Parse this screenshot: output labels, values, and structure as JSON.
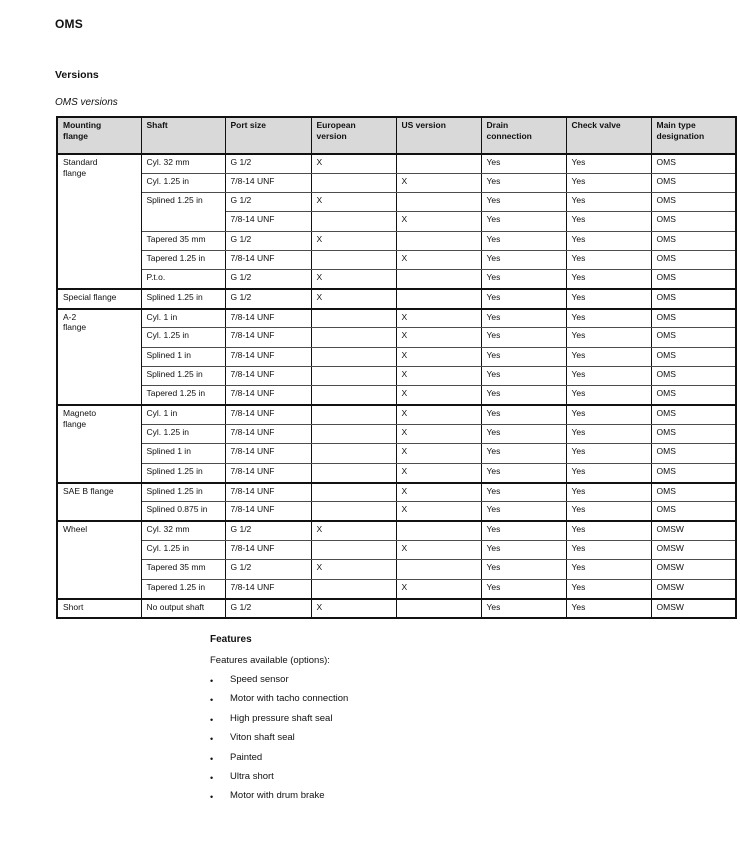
{
  "colors": {
    "header_bg": "#d9d9d9",
    "text": "#111111",
    "border_dark": "#111111",
    "border_light": "#4d4d4d"
  },
  "page": {
    "title": "OMS",
    "section_heading": "Versions",
    "table_caption": "OMS versions"
  },
  "table": {
    "headers": [
      "Mounting\nflange",
      "Shaft",
      "Port size",
      "European\nversion",
      "US version",
      "Drain\nconnection",
      "Check valve",
      "Main type\ndesignation"
    ],
    "groups": [
      {
        "flange": "Standard\nflange",
        "rows": [
          {
            "shaft": "Cyl. 32 mm",
            "port": "G 1/2",
            "eu": "X",
            "us": "",
            "drain": "Yes",
            "check": "Yes",
            "type": "OMS"
          },
          {
            "shaft": "Cyl. 1.25 in",
            "port": "7/8-14 UNF",
            "eu": "",
            "us": "X",
            "drain": "Yes",
            "check": "Yes",
            "type": "OMS"
          },
          {
            "shaft": "Splined 1.25 in",
            "shaft_rowspan": 2,
            "port": "G 1/2",
            "eu": "X",
            "us": "",
            "drain": "Yes",
            "check": "Yes",
            "type": "OMS"
          },
          {
            "shaft": null,
            "port": "7/8-14 UNF",
            "eu": "",
            "us": "X",
            "drain": "Yes",
            "check": "Yes",
            "type": "OMS"
          },
          {
            "shaft": "Tapered 35 mm",
            "port": "G 1/2",
            "eu": "X",
            "us": "",
            "drain": "Yes",
            "check": "Yes",
            "type": "OMS"
          },
          {
            "shaft": "Tapered 1.25 in",
            "port": "7/8-14 UNF",
            "eu": "",
            "us": "X",
            "drain": "Yes",
            "check": "Yes",
            "type": "OMS"
          },
          {
            "shaft": "P.t.o.",
            "port": "G 1/2",
            "eu": "X",
            "us": "",
            "drain": "Yes",
            "check": "Yes",
            "type": "OMS"
          }
        ]
      },
      {
        "flange": "Special flange",
        "rows": [
          {
            "shaft": "Splined 1.25 in",
            "port": "G 1/2",
            "eu": "X",
            "us": "",
            "drain": "Yes",
            "check": "Yes",
            "type": "OMS"
          }
        ]
      },
      {
        "flange": "A-2\nflange",
        "rows": [
          {
            "shaft": "Cyl. 1 in",
            "port": "7/8-14 UNF",
            "eu": "",
            "us": "X",
            "drain": "Yes",
            "check": "Yes",
            "type": "OMS"
          },
          {
            "shaft": "Cyl. 1.25 in",
            "port": "7/8-14 UNF",
            "eu": "",
            "us": "X",
            "drain": "Yes",
            "check": "Yes",
            "type": "OMS"
          },
          {
            "shaft": "Splined 1 in",
            "port": "7/8-14 UNF",
            "eu": "",
            "us": "X",
            "drain": "Yes",
            "check": "Yes",
            "type": "OMS"
          },
          {
            "shaft": "Splined 1.25 in",
            "port": "7/8-14 UNF",
            "eu": "",
            "us": "X",
            "drain": "Yes",
            "check": "Yes",
            "type": "OMS"
          },
          {
            "shaft": "Tapered 1.25 in",
            "port": "7/8-14 UNF",
            "eu": "",
            "us": "X",
            "drain": "Yes",
            "check": "Yes",
            "type": "OMS"
          }
        ]
      },
      {
        "flange": "Magneto\nflange",
        "rows": [
          {
            "shaft": "Cyl. 1 in",
            "port": "7/8-14 UNF",
            "eu": "",
            "us": "X",
            "drain": "Yes",
            "check": "Yes",
            "type": "OMS"
          },
          {
            "shaft": "Cyl. 1.25 in",
            "port": "7/8-14 UNF",
            "eu": "",
            "us": "X",
            "drain": "Yes",
            "check": "Yes",
            "type": "OMS"
          },
          {
            "shaft": "Splined 1 in",
            "port": "7/8-14 UNF",
            "eu": "",
            "us": "X",
            "drain": "Yes",
            "check": "Yes",
            "type": "OMS"
          },
          {
            "shaft": "Splined 1.25 in",
            "port": "7/8-14 UNF",
            "eu": "",
            "us": "X",
            "drain": "Yes",
            "check": "Yes",
            "type": "OMS"
          }
        ]
      },
      {
        "flange": "SAE B flange",
        "rows": [
          {
            "shaft": "Splined 1.25 in",
            "port": "7/8-14 UNF",
            "eu": "",
            "us": "X",
            "drain": "Yes",
            "check": "Yes",
            "type": "OMS"
          },
          {
            "shaft": "Splined 0.875 in",
            "port": "7/8-14 UNF",
            "eu": "",
            "us": "X",
            "drain": "Yes",
            "check": "Yes",
            "type": "OMS"
          }
        ]
      },
      {
        "flange": "Wheel",
        "rows": [
          {
            "shaft": "Cyl. 32 mm",
            "port": "G 1/2",
            "eu": "X",
            "us": "",
            "drain": "Yes",
            "check": "Yes",
            "type": "OMSW"
          },
          {
            "shaft": "Cyl. 1.25 in",
            "port": "7/8-14 UNF",
            "eu": "",
            "us": "X",
            "drain": "Yes",
            "check": "Yes",
            "type": "OMSW"
          },
          {
            "shaft": "Tapered 35 mm",
            "port": "G 1/2",
            "eu": "X",
            "us": "",
            "drain": "Yes",
            "check": "Yes",
            "type": "OMSW"
          },
          {
            "shaft": "Tapered 1.25 in",
            "port": "7/8-14 UNF",
            "eu": "",
            "us": "X",
            "drain": "Yes",
            "check": "Yes",
            "type": "OMSW"
          }
        ]
      },
      {
        "flange": "Short",
        "rows": [
          {
            "shaft": "No output shaft",
            "port": "G 1/2",
            "eu": "X",
            "us": "",
            "drain": "Yes",
            "check": "Yes",
            "type": "OMSW"
          }
        ]
      }
    ]
  },
  "features": {
    "heading": "Features",
    "intro": "Features available (options):",
    "bullet": "•",
    "items": [
      "Speed sensor",
      "Motor with tacho connection",
      "High pressure shaft seal",
      "Viton shaft seal",
      "Painted",
      "Ultra short",
      "Motor with drum brake"
    ]
  }
}
